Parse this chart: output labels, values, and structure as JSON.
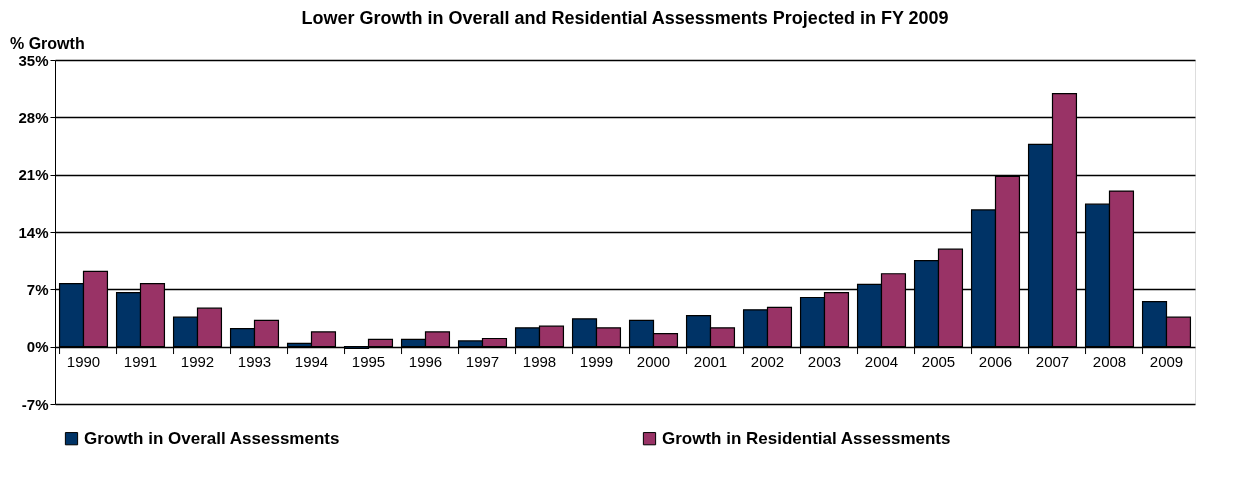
{
  "chart_data": {
    "type": "bar",
    "title": "Lower Growth in Overall and Residential Assessments Projected in FY 2009",
    "ylabel": "% Growth",
    "categories": [
      "1990",
      "1991",
      "1992",
      "1993",
      "1994",
      "1995",
      "1996",
      "1997",
      "1998",
      "1999",
      "2000",
      "2001",
      "2002",
      "2003",
      "2004",
      "2005",
      "2006",
      "2007",
      "2008",
      "2009"
    ],
    "series": [
      {
        "name": "Growth in Overall Assessments",
        "color": "#003366",
        "values": [
          7.7,
          6.6,
          3.6,
          2.2,
          0.4,
          -0.2,
          0.9,
          0.7,
          2.3,
          3.4,
          3.2,
          3.8,
          4.5,
          6.0,
          7.6,
          10.5,
          16.7,
          24.7,
          17.4,
          5.5
        ]
      },
      {
        "name": "Growth in Residential Assessments",
        "color": "#993366",
        "values": [
          9.2,
          7.7,
          4.7,
          3.2,
          1.8,
          0.9,
          1.8,
          1.0,
          2.5,
          2.3,
          1.6,
          2.3,
          4.8,
          6.6,
          8.9,
          11.9,
          20.8,
          30.9,
          19.0,
          3.6
        ]
      }
    ],
    "ylim": [
      -7,
      35
    ],
    "yticks": [
      {
        "value": -7,
        "label": "-7%"
      },
      {
        "value": 0,
        "label": "0%"
      },
      {
        "value": 7,
        "label": "7%"
      },
      {
        "value": 14,
        "label": "14%"
      },
      {
        "value": 21,
        "label": "21%"
      },
      {
        "value": 28,
        "label": "28%"
      },
      {
        "value": 35,
        "label": "35%"
      }
    ],
    "grid": "y",
    "legend": "bottom"
  }
}
